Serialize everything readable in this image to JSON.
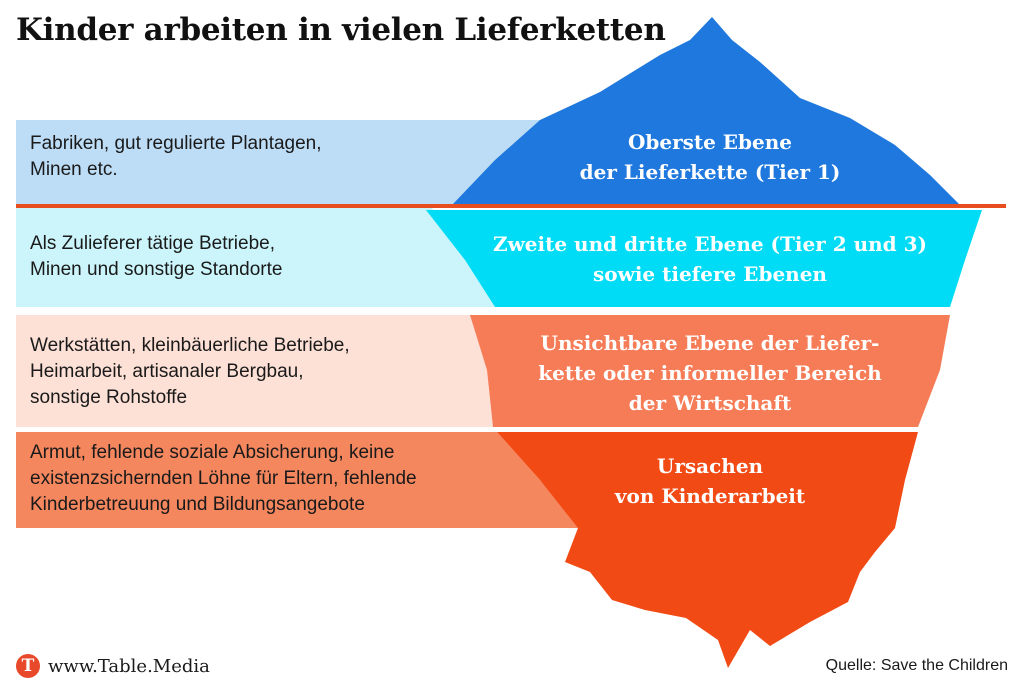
{
  "title": "Kinder arbeiten in vielen Lieferketten",
  "colors": {
    "tier1": "#1f78dd",
    "tier1_band": "#bddcf6",
    "tier2": "#00dcf5",
    "tier2_band": "#cbf5fb",
    "hidden": "#f57c57",
    "hidden_band": "#fde0d6",
    "causes": "#f24a14",
    "causes_band": "#f5875f",
    "waterline": "#e84d20"
  },
  "levels": [
    {
      "berg_lines": [
        "Oberste Ebene",
        "der Lieferkette (Tier 1)"
      ],
      "band_lines": [
        "Fabriken, gut regulierte Plantagen,",
        "Minen etc."
      ]
    },
    {
      "berg_lines": [
        "Zweite und dritte Ebene (Tier 2 und 3)",
        "sowie tiefere Ebenen"
      ],
      "band_lines": [
        "Als Zulieferer tätige Betriebe,",
        "Minen und sonstige Standorte"
      ]
    },
    {
      "berg_lines": [
        "Unsichtbare Ebene der Liefer-",
        "kette oder informeller Bereich",
        "der Wirtschaft"
      ],
      "band_lines": [
        "Werkstätten, kleinbäuerliche Betriebe,",
        "Heimarbeit, artisanaler Bergbau,",
        "sonstige Rohstoffe"
      ]
    },
    {
      "berg_lines": [
        "Ursachen",
        "von Kinderarbeit"
      ],
      "band_lines": [
        "Armut, fehlende soziale Absicherung, keine",
        "existenzsichernden Löhne für Eltern, fehlende",
        "Kinderbetreuung und Bildungsangebote"
      ]
    }
  ],
  "footer": {
    "logo_letter": "T",
    "website": "www.Table.Media",
    "source": "Quelle: Save the Children"
  }
}
